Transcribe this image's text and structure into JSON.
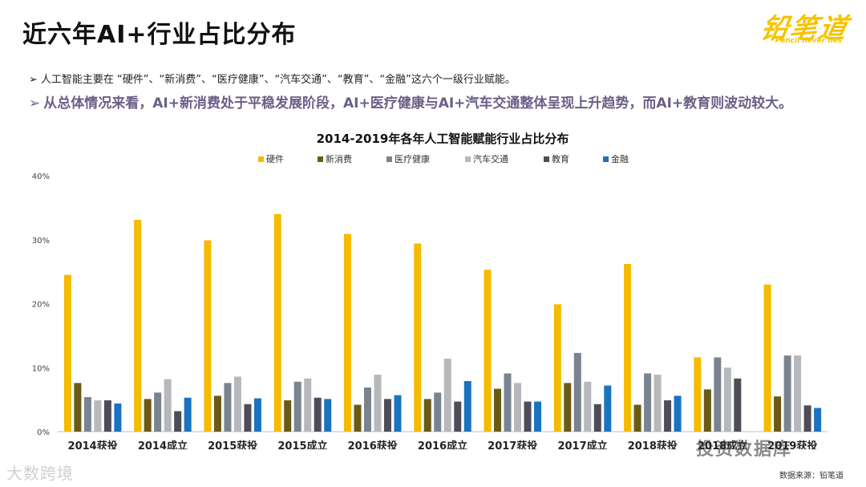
{
  "page": {
    "title": "近六年AI+行业占比分布",
    "bullet1": "人工智能主要在 “硬件”、“新消费”、“医疗健康”、“汽车交通”、“教育”、“金融”这六个一级行业赋能。",
    "bullet2": "从总体情况来看，AI+新消费处于平稳发展阶段，AI+医疗健康与AI+汽车交通整体呈现上升趋势，而AI+教育则波动较大。",
    "bullet_arrow": "➢",
    "source": "数据来源：铅笔道",
    "logo": {
      "main": "铅笔道",
      "sub": "Pencil never lies"
    },
    "watermark_left": "大数跨境",
    "watermark_right": "投资数据库"
  },
  "chart_data": {
    "type": "bar",
    "title": "2014-2019年各年人工智能赋能行业占比分布",
    "categories": [
      "2014获投",
      "2014成立",
      "2015获投",
      "2015成立",
      "2016获投",
      "2016成立",
      "2017获投",
      "2017成立",
      "2018获投",
      "2018成立",
      "2019获投"
    ],
    "y_ticks": [
      "0%",
      "10%",
      "20%",
      "30%",
      "40%"
    ],
    "ylim": [
      0,
      40
    ],
    "legend_position": "top-center",
    "series": [
      {
        "name": "硬件",
        "color": "#f5bb00",
        "values": [
          24.5,
          33.1,
          29.9,
          34.0,
          30.9,
          29.4,
          25.3,
          19.9,
          26.2,
          11.6,
          23.0
        ]
      },
      {
        "name": "新消费",
        "color": "#6b5a14",
        "values": [
          7.6,
          5.1,
          5.6,
          4.9,
          4.2,
          5.1,
          6.7,
          7.6,
          4.2,
          6.6,
          5.5
        ]
      },
      {
        "name": "医疗健康",
        "color": "#7a8490",
        "values": [
          5.4,
          6.1,
          7.6,
          7.8,
          6.9,
          6.1,
          9.1,
          12.3,
          9.1,
          11.6,
          11.9
        ]
      },
      {
        "name": "汽车交通",
        "color": "#b6b8bc",
        "values": [
          4.9,
          8.2,
          8.6,
          8.3,
          8.9,
          11.4,
          7.6,
          7.8,
          8.9,
          10.0,
          11.9
        ]
      },
      {
        "name": "教育",
        "color": "#4e4c58",
        "values": [
          4.9,
          3.2,
          4.3,
          5.3,
          5.1,
          4.7,
          4.7,
          4.3,
          4.9,
          8.3,
          4.1
        ]
      },
      {
        "name": "金融",
        "color": "#1a73c0",
        "values": [
          4.4,
          5.3,
          5.2,
          5.1,
          5.7,
          7.9,
          4.7,
          7.2,
          5.6,
          null,
          3.7
        ]
      }
    ]
  }
}
